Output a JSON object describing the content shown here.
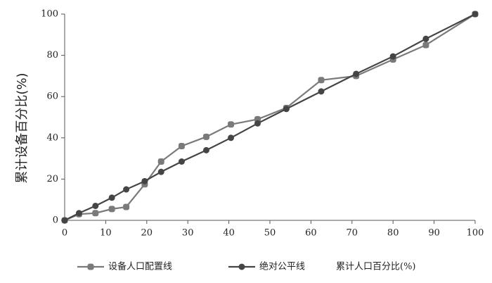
{
  "chart_data": {
    "type": "line",
    "x": [
      0,
      3.5,
      7.5,
      11.5,
      15,
      19.5,
      23.5,
      28.5,
      34.5,
      40.5,
      47,
      54,
      62.5,
      71,
      80,
      88,
      100
    ],
    "series": [
      {
        "name": "设备人口配置线",
        "color": "#7a7a7a",
        "marker": "square",
        "values": [
          0,
          3,
          3.5,
          5.5,
          6.5,
          17.5,
          28.5,
          36,
          40.5,
          46.5,
          49,
          54.5,
          68,
          70,
          78,
          85,
          100
        ]
      },
      {
        "name": "绝对公平线",
        "color": "#454545",
        "marker": "circle",
        "values": [
          0,
          3.5,
          7,
          11,
          15,
          19,
          23.5,
          28.5,
          34,
          40,
          47,
          54,
          62.5,
          71,
          79.5,
          88,
          100
        ]
      }
    ],
    "xlabel": "累计人口百分比(%)",
    "ylabel": "累计设备百分比(%)",
    "xlim": [
      0,
      100
    ],
    "xticks": [
      0,
      10,
      20,
      30,
      40,
      50,
      60,
      70,
      80,
      90,
      100
    ],
    "ylim": [
      0,
      100
    ],
    "yticks": [
      0,
      20,
      40,
      60,
      80,
      100
    ],
    "grid": false,
    "legend": "bottom"
  }
}
